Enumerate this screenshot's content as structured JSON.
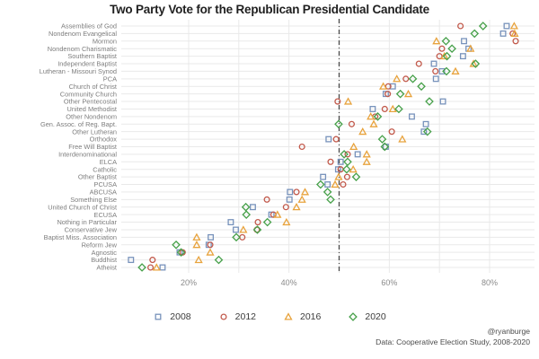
{
  "chart_data": {
    "type": "scatter",
    "title": "Two Party Vote for the Republican Presidential Candidate",
    "xlabel": "",
    "ylabel": "",
    "x_tick_values": [
      20,
      40,
      60,
      80
    ],
    "x_tick_labels": [
      "20%",
      "40%",
      "60%",
      "80%"
    ],
    "x_grid_values": [
      20,
      30,
      40,
      50,
      60,
      70,
      80
    ],
    "x_range": [
      5,
      90
    ],
    "reference_line_pct": 50,
    "grid": true,
    "legend_position": "bottom",
    "categories": [
      "Assemblies of God",
      "Nondenom Evangelical",
      "Mormon",
      "Nondenom Charismatic",
      "Southern Baptist",
      "Independent Baptist",
      "Lutheran - Missouri Synod",
      "PCA",
      "Church of Christ",
      "Community Church",
      "Other Pentecostal",
      "United Methodist",
      "Other Nondenom",
      "Gen. Assoc. of Reg. Bapt.",
      "Other Lutheran",
      "Orthodox",
      "Free Will Baptist",
      "Interdenominational",
      "ELCA",
      "Catholic",
      "Other Baptist",
      "PCUSA",
      "ABCUSA",
      "Something Else",
      "United Church of Christ",
      "ECUSA",
      "Nothing in Particular",
      "Conservative Jew",
      "Baptist Miss. Association",
      "Reform Jew",
      "Agnostic",
      "Buddhist",
      "Atheist"
    ],
    "series": [
      {
        "name": "2008",
        "marker": "square",
        "color": "#7792bb",
        "values": [
          83.4,
          82.7,
          74.9,
          75.8,
          74.7,
          68.9,
          70.5,
          69.3,
          60.7,
          59.3,
          70.7,
          56.7,
          64.5,
          67.3,
          66.9,
          47.9,
          59.3,
          53.7,
          50.3,
          49.8,
          46.8,
          47.7,
          40.2,
          40.1,
          32.8,
          36.5,
          28.4,
          29.4,
          24.4,
          24.0,
          18.2,
          8.5,
          14.8
        ]
      },
      {
        "name": "2012",
        "marker": "circle",
        "color": "#c25a4c",
        "values": [
          74.2,
          84.6,
          85.2,
          70.5,
          70.0,
          65.9,
          69.2,
          63.3,
          59.8,
          59.7,
          49.7,
          59.1,
          57.2,
          52.5,
          60.5,
          49.4,
          42.6,
          51.7,
          48.3,
          50.3,
          51.6,
          50.8,
          41.5,
          35.6,
          39.4,
          36.9,
          33.8,
          33.6,
          30.7,
          24.3,
          18.8,
          12.8,
          12.4
        ]
      },
      {
        "name": "2016",
        "marker": "triangle",
        "color": "#e8a33d",
        "values": [
          84.9,
          85.0,
          69.4,
          76.2,
          71.0,
          76.8,
          73.2,
          61.5,
          58.8,
          63.8,
          51.8,
          60.7,
          56.3,
          56.9,
          54.7,
          62.6,
          52.9,
          55.5,
          55.5,
          52.8,
          49.9,
          49.2,
          43.2,
          42.6,
          41.5,
          37.7,
          39.5,
          30.9,
          21.6,
          21.6,
          24.3,
          22.0,
          13.6
        ]
      },
      {
        "name": "2020",
        "marker": "diamond",
        "color": "#46a049",
        "values": [
          78.7,
          77.0,
          71.3,
          72.5,
          71.5,
          77.2,
          71.4,
          64.7,
          66.4,
          62.2,
          68.0,
          61.9,
          57.7,
          49.9,
          67.6,
          58.6,
          59.1,
          51.0,
          51.7,
          51.5,
          53.4,
          46.3,
          47.7,
          48.3,
          31.4,
          31.5,
          35.7,
          33.7,
          29.5,
          17.5,
          18.5,
          26.0,
          10.7
        ]
      }
    ],
    "annotations": {
      "source_line1": "@ryanburge",
      "source_line2": "Data: Cooperative Election Study, 2008-2020"
    },
    "colors": {
      "grid": "#e9e9e9",
      "reference_line": "#4a4a4a",
      "axis_text": "#8a8a8a",
      "category_text": "#7d7d7d",
      "title_text": "#1f1f1f"
    }
  }
}
